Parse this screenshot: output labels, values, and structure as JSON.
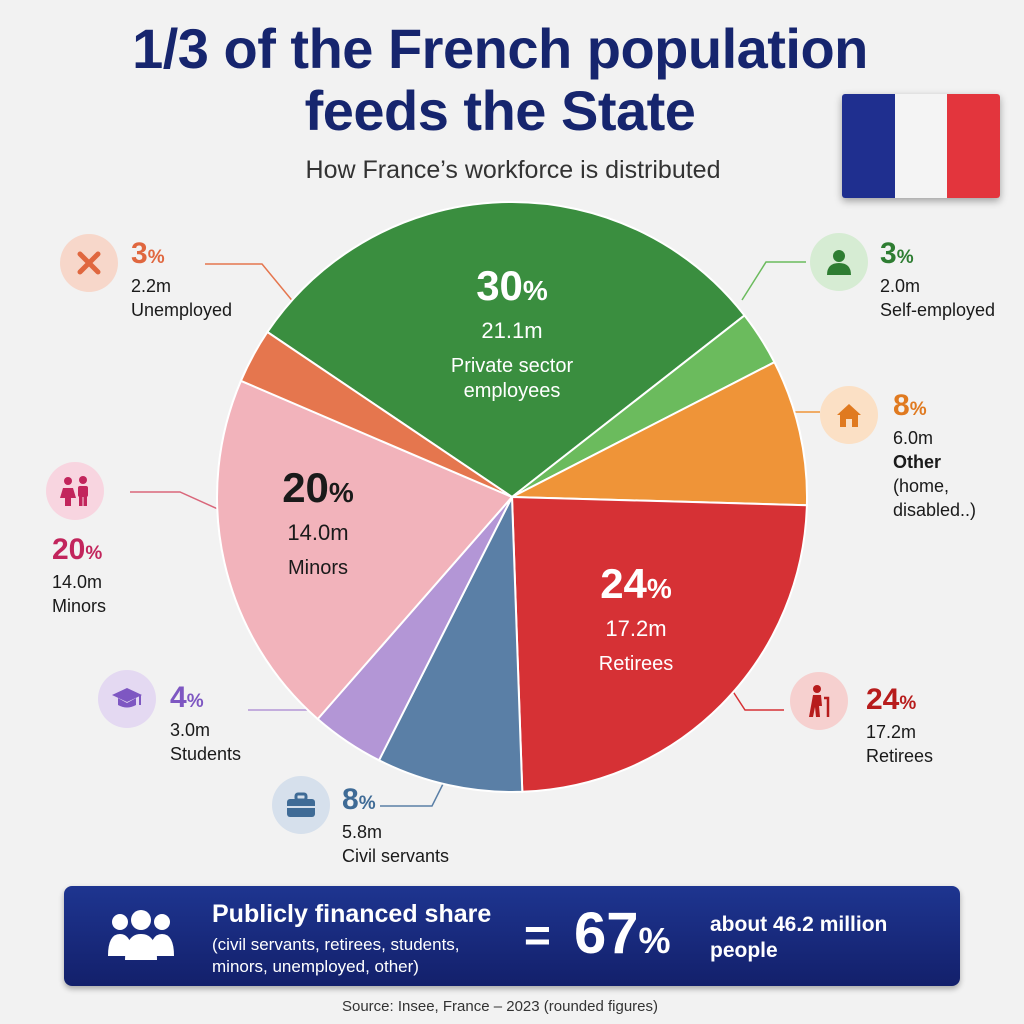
{
  "header": {
    "title_line1": "1/3 of the French population",
    "title_line2": "feeds the State",
    "subtitle": "How France’s workforce is distributed"
  },
  "flag": {
    "colors": [
      "#1f2f8f",
      "#f4f4f4",
      "#e3353d"
    ]
  },
  "chart_data": {
    "type": "pie",
    "title": "1/3 of the French population feeds the State",
    "subtitle": "How France’s workforce is distributed",
    "slices": [
      {
        "pct": 30,
        "value_m": 21.1,
        "label": "Private sector employees",
        "color": "#3a8e3f",
        "start_deg": -56
      },
      {
        "pct": 3,
        "value_m": 2.0,
        "label": "Self-employed",
        "color": "#6bbb5d"
      },
      {
        "pct": 8,
        "value_m": 6.0,
        "label": "Other (home, disabled..)",
        "color": "#ef9438"
      },
      {
        "pct": 24,
        "value_m": 17.2,
        "label": "Retirees",
        "color": "#d63135"
      },
      {
        "pct": 8,
        "value_m": 5.8,
        "label": "Civil servants",
        "color": "#5a7fa6"
      },
      {
        "pct": 4,
        "value_m": 3.0,
        "label": "Students",
        "color": "#b396d6"
      },
      {
        "pct": 20,
        "value_m": 14.0,
        "label": "Minors",
        "color": "#f2b3bb"
      },
      {
        "pct": 3,
        "value_m": 2.2,
        "label": "Unemployed",
        "color": "#e5764e"
      }
    ],
    "inside_labels": [
      {
        "pct": "30",
        "value": "21.1m",
        "label_lines": [
          "Private sector",
          "employees"
        ],
        "text_color": "#ffffff"
      },
      {
        "pct": "20",
        "value": "14.0m",
        "label_lines": [
          "Minors"
        ],
        "text_color": "#1a1a1a"
      },
      {
        "pct": "24",
        "value": "17.2m",
        "label_lines": [
          "Retirees"
        ],
        "text_color": "#ffffff"
      }
    ],
    "legend": "callouts around pie"
  },
  "callouts": {
    "unemployed": {
      "pct": "3",
      "value": "2.2m",
      "label": "Unemployed",
      "color": "#e0673f",
      "icon": "x-icon"
    },
    "self_employed": {
      "pct": "3",
      "value": "2.0m",
      "label": "Self-employed",
      "color": "#2e7d32",
      "icon": "person-icon"
    },
    "other": {
      "pct": "8",
      "value": "6.0m",
      "label1": "Other",
      "label2": "(home,",
      "label3": "disabled..)",
      "color": "#e07a20",
      "icon": "house-icon"
    },
    "minors": {
      "pct": "20",
      "value": "14.0m",
      "label": "Minors",
      "color": "#c2255c",
      "icon": "children-icon"
    },
    "retirees": {
      "pct": "24",
      "value": "17.2m",
      "label": "Retirees",
      "color": "#b71c1c",
      "icon": "elderly-icon"
    },
    "students": {
      "pct": "4",
      "value": "3.0m",
      "label": "Students",
      "color": "#7e57c2",
      "icon": "graduation-cap-icon"
    },
    "civil_servants": {
      "pct": "8",
      "value": "5.8m",
      "label": "Civil servants",
      "color": "#3f6b96",
      "icon": "briefcase-icon"
    }
  },
  "pct_sign": "%",
  "banner": {
    "title": "Publicly financed share",
    "detail": "(civil servants, retirees, students, minors, unemployed, other)",
    "equals": "=",
    "value": "67",
    "people": "about 46.2 million people",
    "icon": "group-icon"
  },
  "source": "Source: Insee, France – 2023 (rounded figures)"
}
